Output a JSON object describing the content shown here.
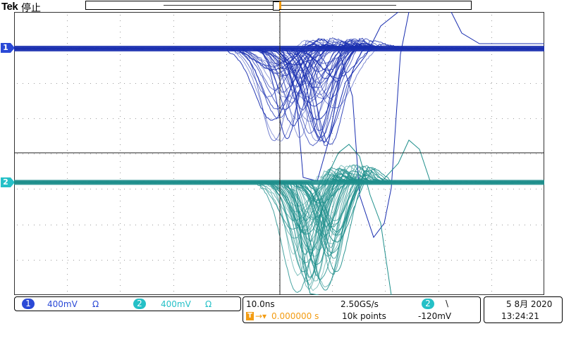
{
  "header": {
    "brand": "Tek",
    "acq_state": "停止"
  },
  "markers": {
    "trigger_position": "T",
    "ch1": "1",
    "ch2": "2"
  },
  "channels": [
    {
      "id": "1",
      "scale": "400mV",
      "coupling_symbol": "Ω",
      "color": "#2a49d6"
    },
    {
      "id": "2",
      "scale": "400mV",
      "coupling_symbol": "Ω",
      "color": "#25c0c7"
    }
  ],
  "timebase": {
    "horizontal_scale": "10.0ns",
    "sample_rate": "2.50GS/s",
    "trigger_delay": "0.000000 s",
    "record_length": "10k points"
  },
  "trigger": {
    "source": "2",
    "slope_symbol": "\\",
    "level": "-120mV",
    "icon_label": "T"
  },
  "datetime": {
    "date": "5 8月 2020",
    "time": "13:24:21"
  },
  "colors": {
    "ch1": "#2a49d6",
    "ch2": "#25c0c7",
    "trigger": "#f39c12",
    "grid": "#9a9a9a"
  }
}
